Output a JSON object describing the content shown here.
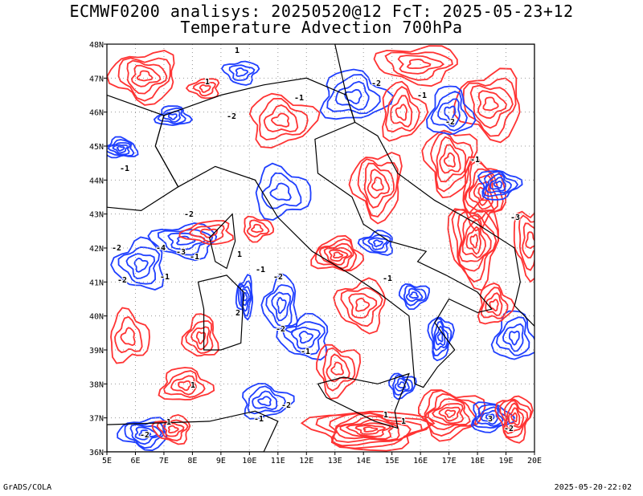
{
  "title": {
    "line1": "ECMWF0200 analisys: 20250520@12 FcT: 2025-05-23+12",
    "line2": "Temperature Advection 700hPa"
  },
  "map": {
    "lon_range": [
      5,
      20
    ],
    "lat_range": [
      36,
      48
    ],
    "lon_labels": [
      "5E",
      "6E",
      "7E",
      "8E",
      "9E",
      "10E",
      "11E",
      "12E",
      "13E",
      "14E",
      "15E",
      "16E",
      "17E",
      "18E",
      "19E",
      "20E"
    ],
    "lat_labels": [
      "48N",
      "47N",
      "46N",
      "45N",
      "44N",
      "43N",
      "42N",
      "41N",
      "40N",
      "39N",
      "38N",
      "37N",
      "36N"
    ],
    "colors": {
      "warm_advection": "#ff3333",
      "cold_advection": "#1f3fff",
      "coastline": "#000000",
      "grid": "#999999"
    },
    "contour_labels": {
      "warm": [
        "1",
        "2",
        "3"
      ],
      "cold": [
        "-1",
        "-2",
        "-3",
        "-4"
      ]
    }
  },
  "footer": {
    "left": "GrADS/COLA",
    "right": "2025-05-20-22:02"
  }
}
